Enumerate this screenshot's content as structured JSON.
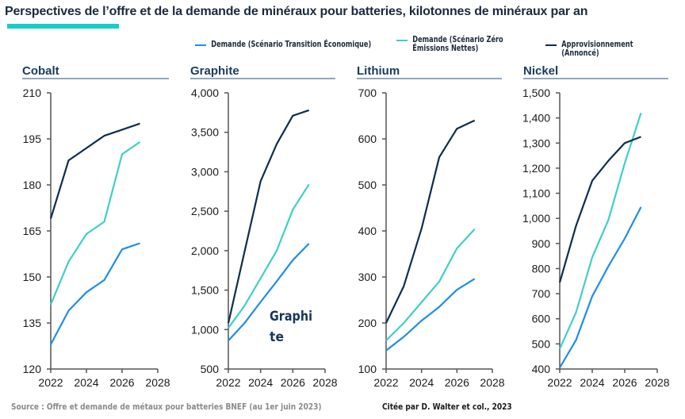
{
  "title": "Perspectives de l’offre et de la demande de minéraux pour batteries, kilotonnes de minéraux par an",
  "colors": {
    "accent_bar": "#17cfc8",
    "transition": "#1e8ee6",
    "net_zero": "#3fcfc4",
    "supply": "#0e2d4f"
  },
  "legend": [
    {
      "key": "transition",
      "label": "Demande (Scénario Transition Économique)",
      "color": "#1e8ee6"
    },
    {
      "key": "net_zero",
      "label": "Demande (Scénario Zéro\nÉmissions Nettes)",
      "color": "#3fcfc4"
    },
    {
      "key": "supply",
      "label": "Approvisionnement (Annoncé)",
      "color": "#0e2d4f"
    }
  ],
  "source": "Source : Offre et demande de métaux pour batteries BNEF (au 1er juin 2023)",
  "citation": "Citée par D. Walter et col., 2023",
  "chart_data": [
    {
      "type": "line",
      "title": "Cobalt",
      "x": [
        2022,
        2023,
        2024,
        2025,
        2026,
        2027
      ],
      "xlim": [
        2022,
        2028
      ],
      "xticks": [
        "2022",
        "2024",
        "2026",
        "2028"
      ],
      "ylim": [
        120,
        210
      ],
      "yticks": [
        "120",
        "135",
        "150",
        "165",
        "180",
        "195",
        "210"
      ],
      "series": [
        {
          "name": "Demande (Scénario Transition Économique)",
          "key": "transition",
          "values": [
            128,
            139,
            145,
            149,
            159,
            161
          ]
        },
        {
          "name": "Demande (Scénario Zéro Émissions Nettes)",
          "key": "net_zero",
          "values": [
            141,
            155,
            164,
            168,
            190,
            194
          ]
        },
        {
          "name": "Approvisionnement (Annoncé)",
          "key": "supply",
          "values": [
            169,
            188,
            192,
            196,
            198,
            200
          ]
        }
      ]
    },
    {
      "type": "line",
      "title": "Graphite",
      "x": [
        2022,
        2023,
        2024,
        2025,
        2026,
        2027
      ],
      "xlim": [
        2022,
        2028
      ],
      "xticks": [
        "2022",
        "2024",
        "2026",
        "2028"
      ],
      "ylim": [
        500,
        4000
      ],
      "yticks": [
        "500",
        "1,000",
        "1,500",
        "2,000",
        "2,500",
        "3,000",
        "3,500",
        "4,000"
      ],
      "annotation": "Graphi\nte",
      "series": [
        {
          "name": "Demande (Scénario Transition Économique)",
          "key": "transition",
          "values": [
            860,
            1080,
            1350,
            1610,
            1880,
            2090
          ]
        },
        {
          "name": "Demande (Scénario Zéro Émissions Nettes)",
          "key": "net_zero",
          "values": [
            1020,
            1300,
            1650,
            2000,
            2520,
            2840
          ]
        },
        {
          "name": "Approvisionnement (Annoncé)",
          "key": "supply",
          "values": [
            1080,
            1980,
            2880,
            3350,
            3710,
            3780
          ]
        }
      ]
    },
    {
      "type": "line",
      "title": "Lithium",
      "x": [
        2022,
        2023,
        2024,
        2025,
        2026,
        2027
      ],
      "xlim": [
        2022,
        2028
      ],
      "xticks": [
        "2022",
        "2024",
        "2026",
        "2028"
      ],
      "ylim": [
        100,
        700
      ],
      "yticks": [
        "100",
        "200",
        "300",
        "400",
        "500",
        "600",
        "700"
      ],
      "series": [
        {
          "name": "Demande (Scénario Transition Économique)",
          "key": "transition",
          "values": [
            140,
            170,
            205,
            235,
            272,
            296
          ]
        },
        {
          "name": "Demande (Scénario Zéro Émissions Nettes)",
          "key": "net_zero",
          "values": [
            162,
            200,
            245,
            290,
            362,
            404
          ]
        },
        {
          "name": "Approvisionnement (Annoncé)",
          "key": "supply",
          "values": [
            200,
            280,
            405,
            560,
            622,
            640
          ]
        }
      ]
    },
    {
      "type": "line",
      "title": "Nickel",
      "x": [
        2022,
        2023,
        2024,
        2025,
        2026,
        2027
      ],
      "xlim": [
        2022,
        2028
      ],
      "xticks": [
        "2022",
        "2024",
        "2026",
        "2028"
      ],
      "ylim": [
        400,
        1500
      ],
      "yticks": [
        "400",
        "500",
        "600",
        "700",
        "800",
        "900",
        "1,000",
        "1,100",
        "1,200",
        "1,300",
        "1,400",
        "1,500"
      ],
      "series": [
        {
          "name": "Demande (Scénario Transition Économique)",
          "key": "transition",
          "values": [
            405,
            515,
            690,
            810,
            920,
            1045
          ]
        },
        {
          "name": "Demande (Scénario Zéro Émissions Nettes)",
          "key": "net_zero",
          "values": [
            480,
            625,
            845,
            995,
            1220,
            1420
          ]
        },
        {
          "name": "Approvisionnement (Annoncé)",
          "key": "supply",
          "values": [
            745,
            970,
            1150,
            1230,
            1300,
            1325
          ]
        }
      ]
    }
  ]
}
